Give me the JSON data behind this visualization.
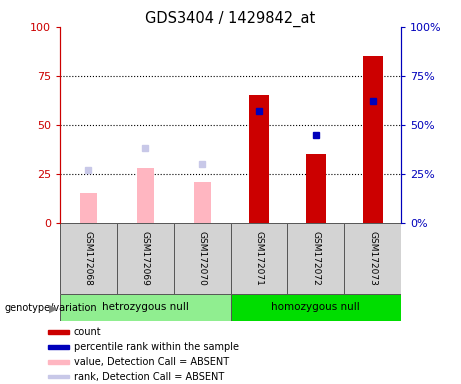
{
  "title": "GDS3404 / 1429842_at",
  "samples": [
    "GSM172068",
    "GSM172069",
    "GSM172070",
    "GSM172071",
    "GSM172072",
    "GSM172073"
  ],
  "groups": [
    {
      "label": "hetrozygous null",
      "color": "#90ee90",
      "indices": [
        0,
        1,
        2
      ]
    },
    {
      "label": "homozygous null",
      "color": "#00dd00",
      "indices": [
        3,
        4,
        5
      ]
    }
  ],
  "bar_values_red": [
    null,
    null,
    null,
    65,
    35,
    85
  ],
  "bar_values_pink": [
    15,
    28,
    21,
    null,
    null,
    null
  ],
  "dot_blue_dark": [
    null,
    null,
    null,
    57,
    45,
    62
  ],
  "dot_blue_light": [
    27,
    38,
    30,
    null,
    null,
    null
  ],
  "left_axis_color": "#cc0000",
  "right_axis_color": "#0000bb",
  "ylim": [
    0,
    100
  ],
  "yticks": [
    0,
    25,
    50,
    75,
    100
  ],
  "bar_width": 0.35,
  "genotype_label": "genotype/variation",
  "legend_items": [
    {
      "color": "#cc0000",
      "label": "count"
    },
    {
      "color": "#0000bb",
      "label": "percentile rank within the sample"
    },
    {
      "color": "#ffb6c1",
      "label": "value, Detection Call = ABSENT"
    },
    {
      "color": "#c8c8e8",
      "label": "rank, Detection Call = ABSENT"
    }
  ]
}
